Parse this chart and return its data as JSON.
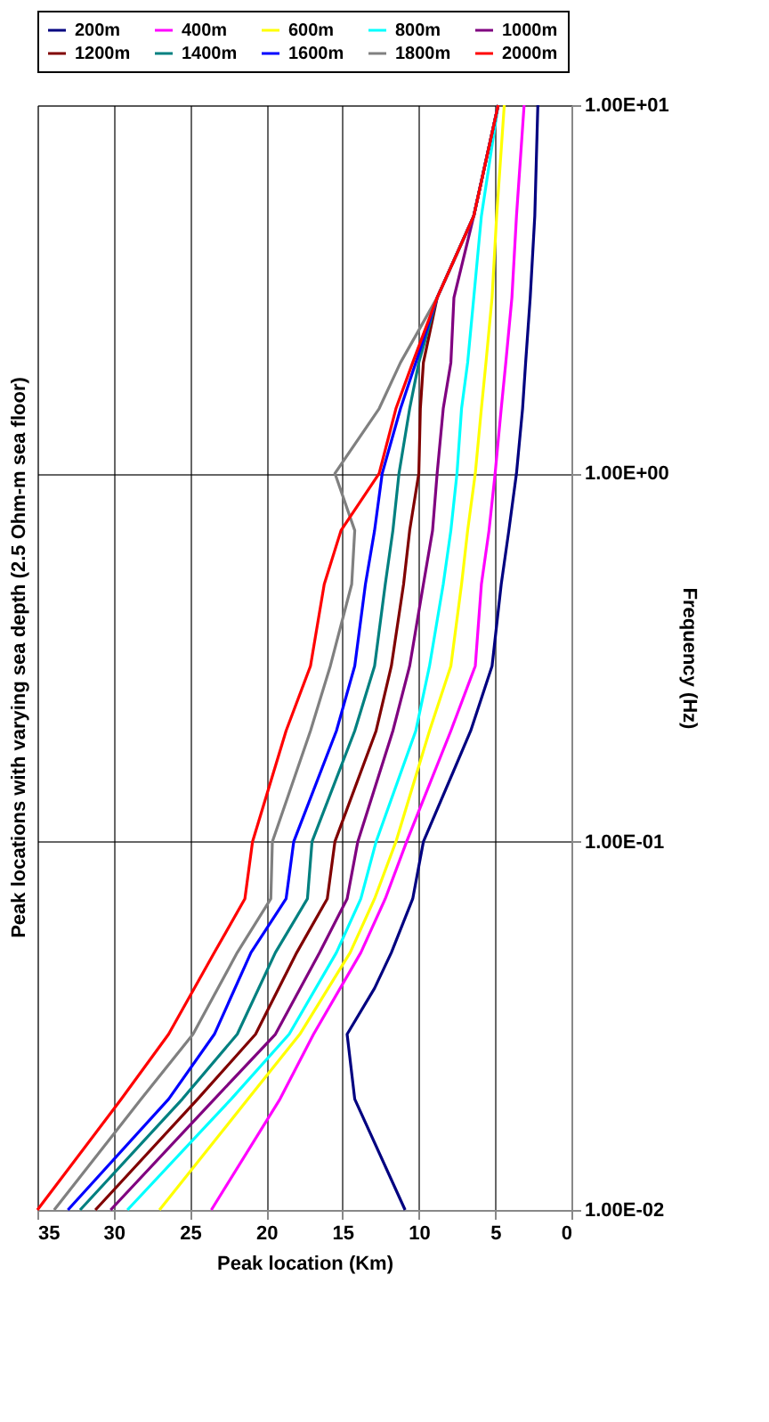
{
  "chart_data": {
    "type": "line",
    "title": "Peak locations with varying sea depth (2.5 Ohm-m sea floor)",
    "xlabel": "Peak location (Km)",
    "ylabel": "Frequency (Hz)",
    "log": "y",
    "grid": true,
    "legend": "top",
    "marker": "none",
    "line_style": "solid",
    "ylim": [
      0.01,
      10
    ],
    "yticks": [
      {
        "value": 0.01,
        "label": "1.00E-02"
      },
      {
        "value": 0.1,
        "label": "1.00E-01"
      },
      {
        "value": 1,
        "label": "1.00E+00"
      },
      {
        "value": 10,
        "label": "1.00E+01"
      }
    ],
    "xlim": [
      35,
      0
    ],
    "xticks": [
      35,
      30,
      25,
      20,
      15,
      10,
      5,
      0
    ],
    "series": [
      {
        "name": "200m",
        "color": "#000080",
        "x": [
          10.9,
          14.2,
          14.7,
          12.9,
          11.8,
          10.4,
          9.7,
          6.6,
          5.2,
          4.6,
          4.1,
          3.6,
          3.2,
          3.0,
          2.7,
          2.4,
          2.2
        ],
        "values": [
          0.01,
          0.02,
          0.03,
          0.04,
          0.05,
          0.07,
          0.1,
          0.2,
          0.3,
          0.5,
          0.7,
          1,
          1.5,
          2,
          3,
          5,
          10
        ]
      },
      {
        "name": "400m",
        "color": "#ff00ff",
        "x": [
          23.6,
          19.1,
          16.9,
          13.8,
          12.2,
          10.8,
          7.9,
          6.3,
          5.9,
          5.4,
          5.0,
          4.6,
          4.3,
          3.9,
          3.6,
          3.1
        ],
        "values": [
          0.01,
          0.02,
          0.03,
          0.05,
          0.07,
          0.1,
          0.2,
          0.3,
          0.5,
          0.7,
          1,
          1.5,
          2,
          3,
          5,
          10
        ]
      },
      {
        "name": "600m",
        "color": "#ffff00",
        "x": [
          27.0,
          21.2,
          17.8,
          14.5,
          12.9,
          11.5,
          9.3,
          7.9,
          7.2,
          6.8,
          6.3,
          5.9,
          5.6,
          5.2,
          4.9,
          4.4
        ],
        "values": [
          0.01,
          0.02,
          0.03,
          0.05,
          0.07,
          0.1,
          0.2,
          0.3,
          0.5,
          0.7,
          1,
          1.5,
          2,
          3,
          5,
          10
        ]
      },
      {
        "name": "800m",
        "color": "#00ffff",
        "x": [
          29.1,
          22.3,
          18.5,
          15.4,
          13.8,
          12.8,
          10.2,
          9.3,
          8.4,
          7.9,
          7.5,
          7.2,
          6.8,
          6.4,
          5.9,
          4.8
        ],
        "values": [
          0.01,
          0.02,
          0.03,
          0.05,
          0.07,
          0.1,
          0.2,
          0.3,
          0.5,
          0.7,
          1,
          1.5,
          2,
          3,
          5,
          10
        ]
      },
      {
        "name": "1000m",
        "color": "#800080",
        "x": [
          30.2,
          23.4,
          19.4,
          16.5,
          14.7,
          14.0,
          11.7,
          10.6,
          9.7,
          9.1,
          8.8,
          8.4,
          7.9,
          7.7,
          6.4,
          4.8
        ],
        "values": [
          0.01,
          0.02,
          0.03,
          0.05,
          0.07,
          0.1,
          0.2,
          0.3,
          0.5,
          0.7,
          1,
          1.5,
          2,
          3,
          5,
          10
        ]
      },
      {
        "name": "1200m",
        "color": "#800000",
        "x": [
          31.2,
          24.5,
          20.7,
          18.0,
          16.0,
          15.5,
          12.8,
          11.8,
          11.0,
          10.6,
          10.0,
          9.9,
          9.7,
          8.8,
          6.4,
          4.8
        ],
        "values": [
          0.01,
          0.02,
          0.03,
          0.05,
          0.07,
          0.1,
          0.2,
          0.3,
          0.5,
          0.7,
          1,
          1.5,
          2,
          3,
          5,
          10
        ]
      },
      {
        "name": "1400m",
        "color": "#008080",
        "x": [
          32.2,
          25.5,
          21.9,
          19.4,
          17.3,
          17.0,
          14.2,
          12.9,
          12.2,
          11.7,
          11.3,
          10.6,
          10.0,
          8.8,
          6.4,
          4.8
        ],
        "values": [
          0.01,
          0.02,
          0.03,
          0.05,
          0.07,
          0.1,
          0.2,
          0.3,
          0.5,
          0.7,
          1,
          1.5,
          2,
          3,
          5,
          10
        ]
      },
      {
        "name": "1600m",
        "color": "#0000ff",
        "x": [
          33.0,
          26.4,
          23.4,
          21.0,
          18.7,
          18.2,
          15.4,
          14.2,
          13.5,
          12.9,
          12.4,
          11.2,
          10.2,
          8.8,
          6.4,
          4.8
        ],
        "values": [
          0.01,
          0.02,
          0.03,
          0.05,
          0.07,
          0.1,
          0.2,
          0.3,
          0.5,
          0.7,
          1,
          1.5,
          2,
          3,
          5,
          10
        ]
      },
      {
        "name": "1800m",
        "color": "#808080",
        "x": [
          33.9,
          28.2,
          24.8,
          21.9,
          19.7,
          19.6,
          17.1,
          15.8,
          14.4,
          14.2,
          15.5,
          12.6,
          11.2,
          8.8,
          6.4,
          4.8
        ],
        "values": [
          0.01,
          0.02,
          0.03,
          0.05,
          0.07,
          0.1,
          0.2,
          0.3,
          0.5,
          0.7,
          1,
          1.5,
          2,
          3,
          5,
          10
        ]
      },
      {
        "name": "2000m",
        "color": "#ff0000",
        "x": [
          35.0,
          29.5,
          26.4,
          23.4,
          21.4,
          20.9,
          18.7,
          17.1,
          16.2,
          15.1,
          12.6,
          11.5,
          10.4,
          8.8,
          6.4,
          4.8
        ],
        "values": [
          0.01,
          0.02,
          0.03,
          0.05,
          0.07,
          0.1,
          0.2,
          0.3,
          0.5,
          0.7,
          1,
          1.5,
          2,
          3,
          5,
          10
        ]
      }
    ]
  }
}
